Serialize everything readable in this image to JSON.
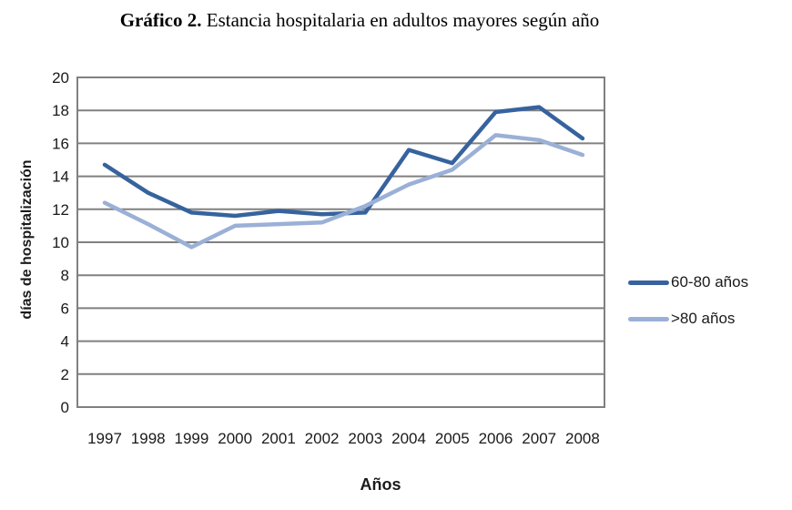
{
  "title": {
    "prefix": "Gráfico 2.",
    "text": " Estancia hospitalaria en adultos mayores según año"
  },
  "chart_data": {
    "type": "line",
    "title": "Gráfico 2. Estancia hospitalaria en adultos mayores según año",
    "xlabel": "Años",
    "ylabel": "días de hospitalización",
    "ylim": [
      0,
      20
    ],
    "ytick_step": 2,
    "grid": "horizontal",
    "legend_position": "right",
    "categories": [
      "1997",
      "1998",
      "1999",
      "2000",
      "2001",
      "2002",
      "2003",
      "2004",
      "2005",
      "2006",
      "2007",
      "2008"
    ],
    "series": [
      {
        "name": "60-80 años",
        "color": "#36639E",
        "values": [
          14.7,
          13.0,
          11.8,
          11.6,
          11.9,
          11.7,
          11.8,
          15.6,
          14.8,
          17.9,
          18.2,
          16.3
        ]
      },
      {
        "name": ">80 años",
        "color": "#9BB0D6",
        "values": [
          12.4,
          11.1,
          9.7,
          11.0,
          11.1,
          11.2,
          12.2,
          13.5,
          14.4,
          16.5,
          16.2,
          15.3
        ]
      }
    ]
  },
  "colors": {
    "grid": "#808080",
    "background": "#ffffff",
    "text": "#1a1a1a"
  }
}
